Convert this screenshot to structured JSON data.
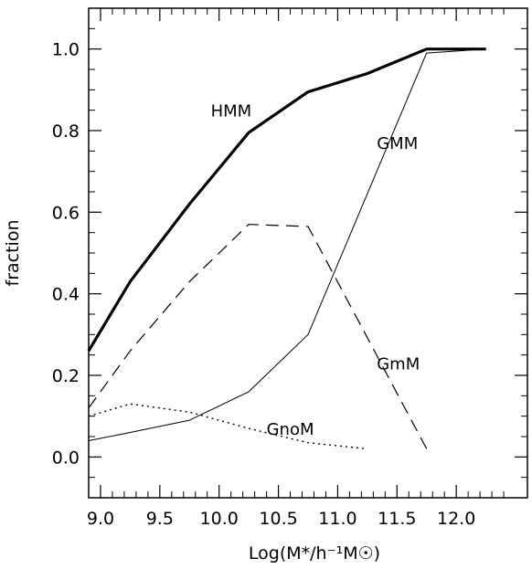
{
  "chart_data": {
    "type": "line",
    "xlabel": "Log(M*/h⁻¹M☉)",
    "ylabel": "fraction",
    "xlim": [
      8.9,
      12.6
    ],
    "ylim": [
      -0.1,
      1.1
    ],
    "x_ticks": [
      9.0,
      9.5,
      10.0,
      10.5,
      11.0,
      11.5,
      12.0
    ],
    "x_tick_labels": [
      "9.0",
      "9.5",
      "10.0",
      "10.5",
      "11.0",
      "11.5",
      "12.0"
    ],
    "y_ticks": [
      0.0,
      0.2,
      0.4,
      0.6,
      0.8,
      1.0
    ],
    "y_tick_labels": [
      "0.0",
      "0.2",
      "0.4",
      "0.6",
      "0.8",
      "1.0"
    ],
    "grid": false,
    "series": [
      {
        "name": "HMM",
        "style": "thick-solid",
        "x": [
          8.9,
          9.25,
          9.75,
          10.25,
          10.75,
          11.25,
          11.75,
          12.25
        ],
        "y": [
          0.26,
          0.43,
          0.62,
          0.795,
          0.895,
          0.94,
          1.0,
          1.0
        ]
      },
      {
        "name": "GMM",
        "style": "thin-solid",
        "x": [
          8.9,
          9.25,
          9.75,
          10.25,
          10.75,
          11.75,
          12.25
        ],
        "y": [
          0.04,
          0.06,
          0.09,
          0.16,
          0.3,
          0.99,
          1.0
        ]
      },
      {
        "name": "GmM",
        "style": "dashed",
        "x": [
          8.9,
          9.25,
          9.75,
          10.25,
          10.75,
          11.75
        ],
        "y": [
          0.12,
          0.26,
          0.43,
          0.57,
          0.565,
          0.02
        ]
      },
      {
        "name": "GnoM",
        "style": "dotted",
        "x": [
          8.9,
          9.25,
          9.75,
          10.25,
          10.75,
          11.25
        ],
        "y": [
          0.1,
          0.13,
          0.11,
          0.07,
          0.035,
          0.02
        ]
      }
    ],
    "annotations": [
      {
        "text": "HMM",
        "x": 9.93,
        "y": 0.835
      },
      {
        "text": "GMM",
        "x": 11.33,
        "y": 0.755
      },
      {
        "text": "GmM",
        "x": 11.33,
        "y": 0.215
      },
      {
        "text": "GnoM",
        "x": 10.4,
        "y": 0.055
      }
    ]
  }
}
